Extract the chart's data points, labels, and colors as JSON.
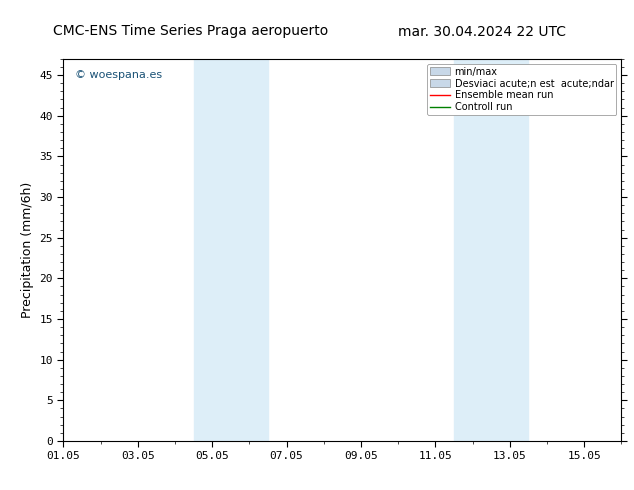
{
  "title_left": "CMC-ENS Time Series Praga aeropuerto",
  "title_right": "mar. 30.04.2024 22 UTC",
  "ylabel": "Precipitation (mm/6h)",
  "watermark": "© woespana.es",
  "ylim": [
    0,
    47
  ],
  "yticks": [
    0,
    5,
    10,
    15,
    20,
    25,
    30,
    35,
    40,
    45
  ],
  "xtick_labels": [
    "01.05",
    "03.05",
    "05.05",
    "07.05",
    "09.05",
    "11.05",
    "13.05",
    "15.05"
  ],
  "xtick_positions": [
    0,
    2,
    4,
    6,
    8,
    10,
    12,
    14
  ],
  "xlim": [
    0,
    15
  ],
  "shaded_regions": [
    {
      "x_start": 3.5,
      "x_end": 5.5,
      "color": "#ddeef8"
    },
    {
      "x_start": 10.5,
      "x_end": 12.5,
      "color": "#ddeef8"
    }
  ],
  "legend_labels": [
    "min/max",
    "Desviaci acute;n est  acute;ndar",
    "Ensemble mean run",
    "Controll run"
  ],
  "legend_patch_color": "#c8d8e8",
  "legend_line_colors": [
    "red",
    "green"
  ],
  "background_color": "#ffffff",
  "title_fontsize": 10,
  "tick_fontsize": 8,
  "ylabel_fontsize": 9,
  "watermark_color": "#1a5276"
}
